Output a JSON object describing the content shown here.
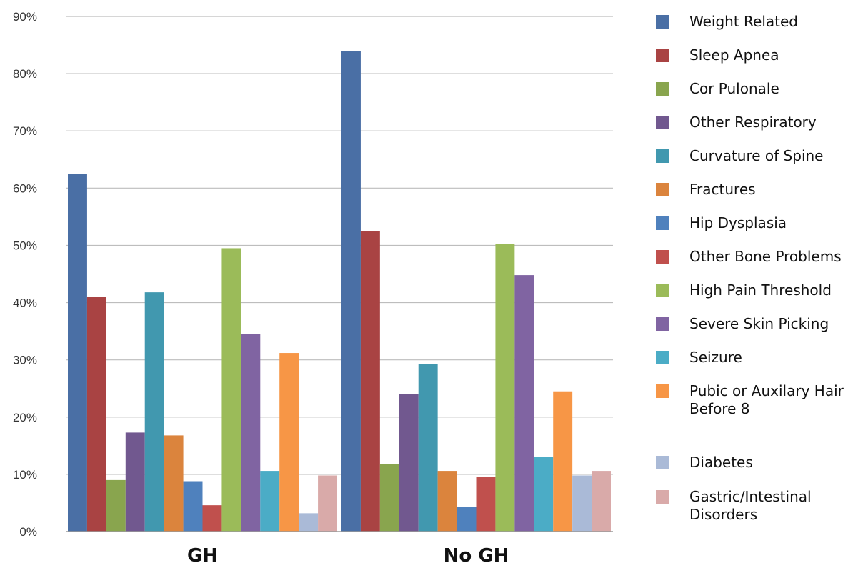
{
  "chart_data": {
    "type": "bar",
    "categories": [
      "GH",
      "No GH"
    ],
    "ylim": [
      0,
      90
    ],
    "yticks": [
      "0%",
      "10%",
      "20%",
      "30%",
      "40%",
      "50%",
      "60%",
      "70%",
      "80%",
      "90%"
    ],
    "grid": true,
    "legend_position": "right",
    "series": [
      {
        "name": "Weight Related",
        "color": "#4a6fa5",
        "values": [
          62.5,
          84
        ]
      },
      {
        "name": "Sleep Apnea",
        "color": "#a94343",
        "values": [
          41,
          52.5
        ]
      },
      {
        "name": "Cor Pulonale",
        "color": "#89a54e",
        "values": [
          9,
          11.8
        ]
      },
      {
        "name": "Other Respiratory",
        "color": "#71588f",
        "values": [
          17.3,
          24
        ]
      },
      {
        "name": "Curvature of Spine",
        "color": "#4198af",
        "values": [
          41.8,
          29.3
        ]
      },
      {
        "name": "Fractures",
        "color": "#db843d",
        "values": [
          16.8,
          10.6
        ]
      },
      {
        "name": "Hip Dysplasia",
        "color": "#4f81bd",
        "values": [
          8.8,
          4.3
        ]
      },
      {
        "name": "Other Bone Problems",
        "color": "#c0504d",
        "values": [
          4.6,
          9.5
        ]
      },
      {
        "name": "High Pain Threshold",
        "color": "#9bbb59",
        "values": [
          49.5,
          50.3
        ]
      },
      {
        "name": "Severe Skin Picking",
        "color": "#8064a2",
        "values": [
          34.5,
          44.8
        ]
      },
      {
        "name": "Seizure",
        "color": "#4bacc6",
        "values": [
          10.6,
          13
        ]
      },
      {
        "name": "Pubic or Auxilary Hair Before 8",
        "color": "#f79646",
        "values": [
          31.2,
          24.5
        ]
      },
      {
        "name": "Diabetes",
        "color": "#aabad7",
        "values": [
          3.2,
          9.8
        ]
      },
      {
        "name": "Gastric/Intestinal Disorders",
        "color": "#d9aaa9",
        "values": [
          9.8,
          10.6
        ]
      }
    ]
  }
}
